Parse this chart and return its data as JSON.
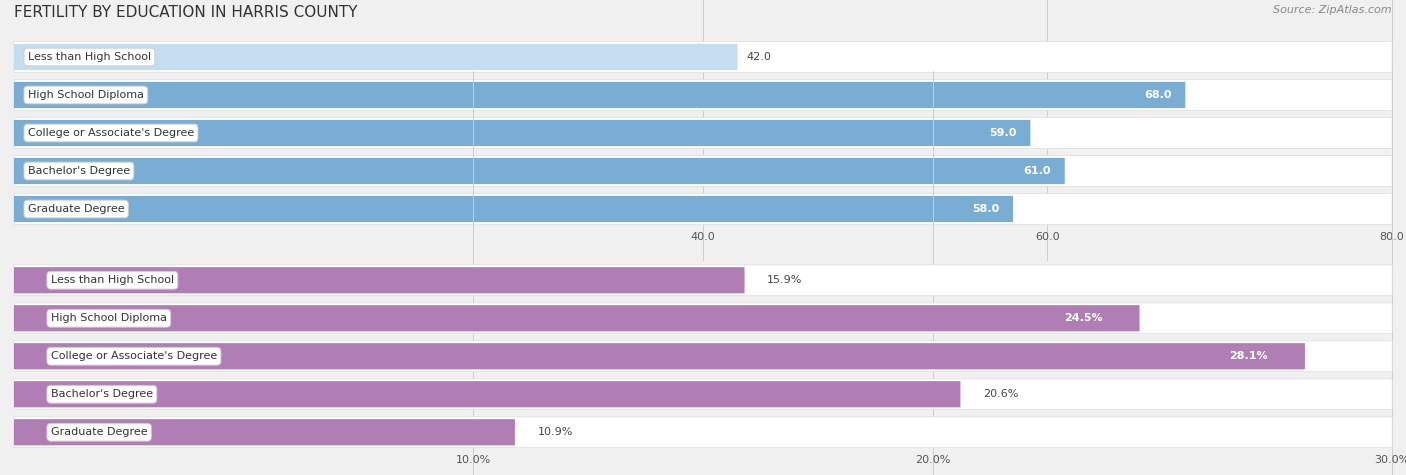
{
  "title": "FERTILITY BY EDUCATION IN HARRIS COUNTY",
  "source": "Source: ZipAtlas.com",
  "group1": {
    "categories": [
      "Less than High School",
      "High School Diploma",
      "College or Associate's Degree",
      "Bachelor's Degree",
      "Graduate Degree"
    ],
    "values": [
      42.0,
      68.0,
      59.0,
      61.0,
      58.0
    ],
    "value_labels": [
      "42.0",
      "68.0",
      "59.0",
      "61.0",
      "58.0"
    ],
    "bar_color": "#7aadd4",
    "bar_color_light": "#c5ddf0",
    "xlim": [
      0,
      80
    ],
    "xticks": [
      40.0,
      60.0,
      80.0
    ],
    "inside_threshold": 55.0
  },
  "group2": {
    "categories": [
      "Less than High School",
      "High School Diploma",
      "College or Associate's Degree",
      "Bachelor's Degree",
      "Graduate Degree"
    ],
    "values": [
      15.9,
      24.5,
      28.1,
      20.6,
      10.9
    ],
    "value_labels": [
      "15.9%",
      "24.5%",
      "28.1%",
      "20.6%",
      "10.9%"
    ],
    "bar_color": "#b07db5",
    "bar_color_light": "#ddb8e0",
    "xlim": [
      0,
      30
    ],
    "xticks": [
      10.0,
      20.0,
      30.0
    ],
    "xtick_labels": [
      "10.0%",
      "20.0%",
      "30.0%"
    ],
    "inside_threshold": 22.0
  },
  "background_color": "#f0f0f0",
  "bar_row_bg": "#f8f8f8",
  "bar_height": 0.68,
  "label_fontsize": 8.0,
  "title_fontsize": 11,
  "source_fontsize": 8,
  "tick_fontsize": 8
}
